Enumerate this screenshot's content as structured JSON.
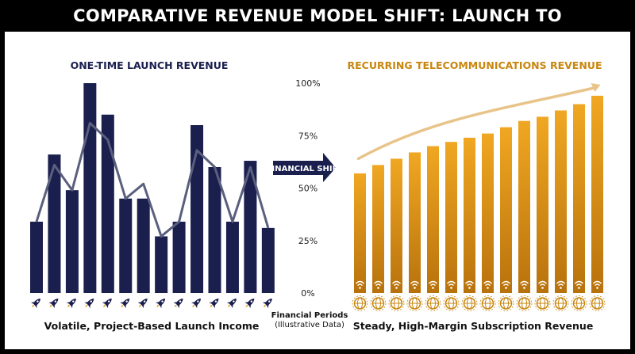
{
  "header": {
    "title": "COMPARATIVE REVENUE MODEL SHIFT: LAUNCH TO SUBSCRIPTION"
  },
  "colors": {
    "background": "#000000",
    "panel": "#ffffff",
    "launch_bar": "#1a1f4e",
    "launch_line": "#5a5f7e",
    "subscription_bar": "#e39b1c",
    "subscription_accent": "#c8860e",
    "trend_arrow": "#e8c48a"
  },
  "chart_data": [
    {
      "type": "bar",
      "title": "ONE-TIME LAUNCH REVENUE",
      "caption": "Volatile, Project-Based Launch Income",
      "categories": [
        "",
        "",
        "",
        "",
        "",
        "",
        "",
        "",
        "",
        "",
        "",
        "",
        "",
        ""
      ],
      "values": [
        34,
        66,
        49,
        100,
        85,
        45,
        45,
        27,
        34,
        80,
        60,
        34,
        63,
        31
      ],
      "overlay_line": {
        "values": [
          34,
          61,
          49,
          81,
          73,
          45,
          52,
          27,
          34,
          68,
          60,
          34,
          60,
          31
        ]
      },
      "icon": "rocket-icon",
      "grid": false
    },
    {
      "type": "bar",
      "title": "RECURRING TELECOMMUNICATIONS REVENUE",
      "caption": "Steady, High-Margin Subscription Revenue",
      "categories": [
        "",
        "",
        "",
        "",
        "",
        "",
        "",
        "",
        "",
        "",
        "",
        "",
        "",
        ""
      ],
      "values": [
        57,
        61,
        64,
        67,
        70,
        72,
        74,
        76,
        79,
        82,
        84,
        87,
        90,
        94
      ],
      "trend_arrow": {
        "start": 64,
        "end": 100
      },
      "icon": "globe-icon",
      "bar_icon": "wifi-icon",
      "ylim": [
        0,
        100
      ],
      "y_ticks": [
        "0%",
        "25%",
        "50%",
        "75%",
        "100%"
      ],
      "y_tick_values": [
        0,
        25,
        50,
        75,
        100
      ],
      "grid": false
    }
  ],
  "center": {
    "shift_label": "FINANCIAL SHIFT",
    "xlabel": "Financial Periods",
    "xlabel_note": "(Illustrative Data)"
  }
}
